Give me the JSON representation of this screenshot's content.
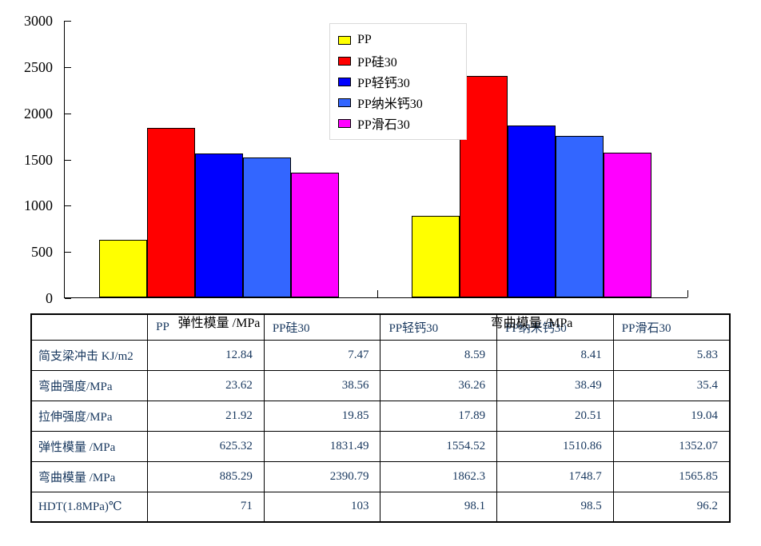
{
  "chart_data": {
    "type": "bar",
    "categories": [
      "弹性模量 /MPa",
      "弯曲模量 /MPa"
    ],
    "series": [
      {
        "name": "PP",
        "color": "#FFFF00",
        "values": [
          625.32,
          885.29
        ]
      },
      {
        "name": "PP硅30",
        "color": "#FF0000",
        "values": [
          1831.49,
          2390.79
        ]
      },
      {
        "name": "PP轻钙30",
        "color": "#0000FF",
        "values": [
          1554.52,
          1862.3
        ]
      },
      {
        "name": "PP纳米钙30",
        "color": "#3366FF",
        "values": [
          1510.86,
          1748.7
        ]
      },
      {
        "name": "PP滑石30",
        "color": "#FF00FF",
        "values": [
          1352.07,
          1565.85
        ]
      }
    ],
    "ylim": [
      0,
      3000
    ],
    "y_ticks": [
      0,
      500,
      1000,
      1500,
      2000,
      2500,
      3000
    ],
    "grid": false,
    "legend_position": "top-center",
    "axis_color": "#000000",
    "bar_border_color": "#000000"
  },
  "table": {
    "text_color": "#17375E",
    "header": [
      "",
      "PP",
      "PP硅30",
      "PP轻钙30",
      "PP纳米钙30",
      "PP滑石30"
    ],
    "rows": [
      {
        "label": "简支梁冲击 KJ/m2",
        "values": [
          "12.84",
          "7.47",
          "8.59",
          "8.41",
          "5.83"
        ]
      },
      {
        "label": "弯曲强度/MPa",
        "values": [
          "23.62",
          "38.56",
          "36.26",
          "38.49",
          "35.4"
        ]
      },
      {
        "label": "拉伸强度/MPa",
        "values": [
          "21.92",
          "19.85",
          "17.89",
          "20.51",
          "19.04"
        ]
      },
      {
        "label": "弹性模量 /MPa",
        "values": [
          "625.32",
          "1831.49",
          "1554.52",
          "1510.86",
          "1352.07"
        ]
      },
      {
        "label": "弯曲模量 /MPa",
        "values": [
          "885.29",
          "2390.79",
          "1862.3",
          "1748.7",
          "1565.85"
        ]
      },
      {
        "label": "HDT(1.8MPa)℃",
        "values": [
          "71",
          "103",
          "98.1",
          "98.5",
          "96.2"
        ]
      }
    ]
  }
}
